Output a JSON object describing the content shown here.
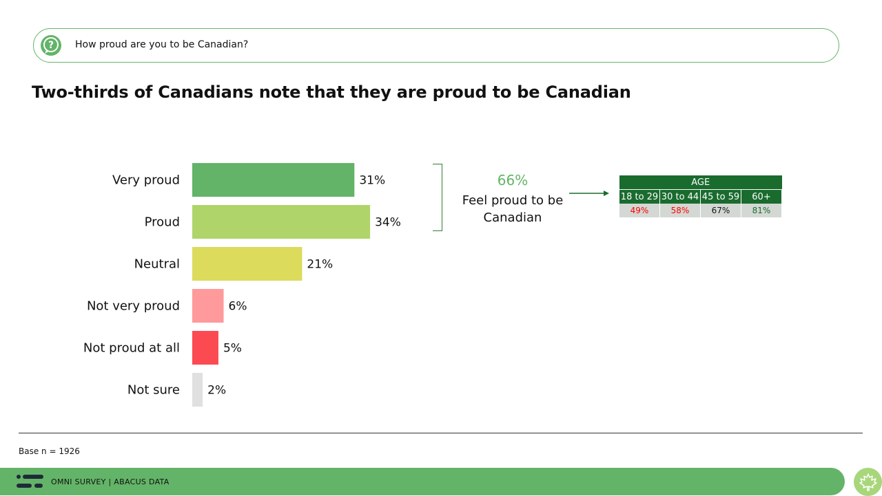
{
  "question": {
    "icon": "question-bubble-icon",
    "text": "How proud are you to be Canadian?"
  },
  "headline": "Two-thirds of Canadians note that they are proud to be Canadian",
  "chart_data": {
    "type": "bar",
    "orientation": "horizontal",
    "categories": [
      "Very proud",
      "Proud",
      "Neutral",
      "Not very proud",
      "Not proud at all",
      "Not sure"
    ],
    "values": [
      31,
      34,
      21,
      6,
      5,
      2
    ],
    "value_labels": [
      "31%",
      "34%",
      "21%",
      "6%",
      "5%",
      "2%"
    ],
    "colors": [
      "#63b468",
      "#afd46a",
      "#dcdb5c",
      "#fe9a9b",
      "#fc4a52",
      "#e0e0e0"
    ],
    "xlim": [
      0,
      44
    ],
    "grid": false
  },
  "summary": {
    "percent": "66%",
    "label": "Feel proud to be Canadian",
    "accent": "#63b468"
  },
  "age_table": {
    "header": "AGE",
    "groups": [
      "18 to 29",
      "30 to 44",
      "45 to 59",
      "60+"
    ],
    "values": [
      "49%",
      "58%",
      "67%",
      "81%"
    ],
    "value_colors": [
      "#ff0000",
      "#ff0000",
      "#111111",
      "#1a6b2e"
    ]
  },
  "base": "Base n = 1926",
  "footer": {
    "text": "OMNI SURVEY  |  ABACUS DATA",
    "bar_color": "#63b468",
    "logo_icon": "abacus-logo-icon",
    "leaf_icon": "maple-leaf-icon"
  }
}
